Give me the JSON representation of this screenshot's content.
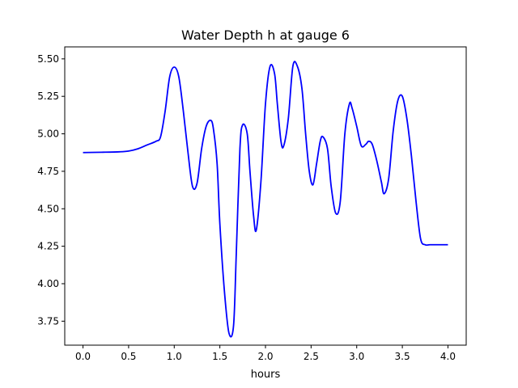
{
  "chart_data": {
    "type": "line",
    "title": "Water Depth h at gauge 6",
    "xlabel": "hours",
    "ylabel": "",
    "xlim": [
      -0.2,
      4.2
    ],
    "ylim": [
      3.59,
      5.58
    ],
    "xticks": [
      0.0,
      0.5,
      1.0,
      1.5,
      2.0,
      2.5,
      3.0,
      3.5,
      4.0
    ],
    "xtick_labels": [
      "0.0",
      "0.5",
      "1.0",
      "1.5",
      "2.0",
      "2.5",
      "3.0",
      "3.5",
      "4.0"
    ],
    "yticks": [
      3.75,
      4.0,
      4.25,
      4.5,
      4.75,
      5.0,
      5.25,
      5.5
    ],
    "ytick_labels": [
      "3.75",
      "4.00",
      "4.25",
      "4.50",
      "4.75",
      "5.00",
      "5.25",
      "5.50"
    ],
    "grid": false,
    "series": [
      {
        "name": "",
        "color": "#0000ff",
        "x": [
          0.0,
          0.2,
          0.4,
          0.5,
          0.6,
          0.7,
          0.8,
          0.85,
          0.9,
          0.95,
          1.0,
          1.05,
          1.1,
          1.15,
          1.2,
          1.25,
          1.3,
          1.35,
          1.4,
          1.43,
          1.47,
          1.5,
          1.55,
          1.6,
          1.65,
          1.68,
          1.72,
          1.75,
          1.8,
          1.83,
          1.87,
          1.9,
          1.95,
          2.0,
          2.05,
          2.1,
          2.13,
          2.17,
          2.2,
          2.25,
          2.3,
          2.35,
          2.4,
          2.44,
          2.48,
          2.52,
          2.56,
          2.6,
          2.63,
          2.68,
          2.72,
          2.77,
          2.82,
          2.87,
          2.92,
          2.95,
          3.0,
          3.05,
          3.1,
          3.13,
          3.17,
          3.22,
          3.27,
          3.3,
          3.35,
          3.4,
          3.45,
          3.5,
          3.55,
          3.6,
          3.65,
          3.7,
          3.75,
          3.8,
          3.85,
          3.9,
          3.95,
          4.0
        ],
        "y": [
          4.875,
          4.877,
          4.88,
          4.885,
          4.9,
          4.925,
          4.95,
          4.98,
          5.15,
          5.38,
          5.445,
          5.38,
          5.15,
          4.88,
          4.65,
          4.67,
          4.9,
          5.05,
          5.09,
          5.03,
          4.8,
          4.4,
          3.95,
          3.67,
          3.72,
          4.2,
          4.9,
          5.06,
          5.0,
          4.75,
          4.45,
          4.36,
          4.68,
          5.2,
          5.45,
          5.4,
          5.2,
          4.95,
          4.92,
          5.1,
          5.45,
          5.45,
          5.3,
          5.0,
          4.75,
          4.66,
          4.8,
          4.95,
          4.98,
          4.9,
          4.65,
          4.47,
          4.55,
          5.0,
          5.2,
          5.17,
          5.05,
          4.92,
          4.93,
          4.95,
          4.93,
          4.82,
          4.68,
          4.6,
          4.7,
          5.02,
          5.22,
          5.25,
          5.1,
          4.85,
          4.55,
          4.3,
          4.26,
          4.26,
          4.26,
          4.26,
          4.26,
          4.26
        ]
      }
    ]
  }
}
